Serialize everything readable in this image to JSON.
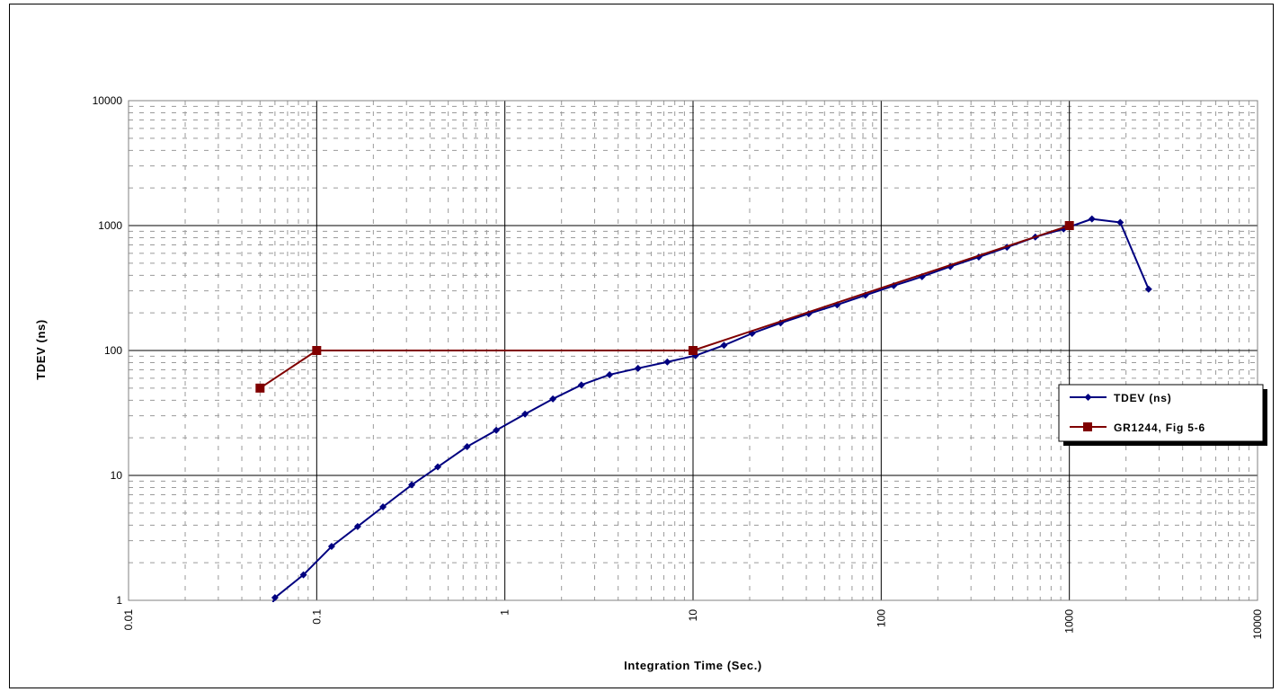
{
  "chart_data": {
    "type": "line",
    "title": "",
    "xlabel": "Integration Time (Sec.)",
    "ylabel": "TDEV (ns)",
    "xscale": "log",
    "yscale": "log",
    "xlim": [
      0.01,
      10000
    ],
    "ylim": [
      1,
      10000
    ],
    "x_ticks": [
      "0.01",
      "0.1",
      "1",
      "10",
      "100",
      "1000",
      "10000"
    ],
    "y_ticks": [
      "1",
      "10",
      "100",
      "1000",
      "10000"
    ],
    "grid": "major solid, minor dashed",
    "legend": {
      "placement": "right",
      "entries": [
        "TDEV (ns)",
        "GR1244, Fig 5-6"
      ]
    },
    "series": [
      {
        "name": "TDEV (ns)",
        "color": "#000080",
        "marker": "diamond",
        "x": [
          0.057,
          0.06,
          0.085,
          0.12,
          0.165,
          0.225,
          0.32,
          0.44,
          0.63,
          0.9,
          1.28,
          1.8,
          2.55,
          3.6,
          5.1,
          7.3,
          10.3,
          14.6,
          20.6,
          29.2,
          41.2,
          58.3,
          82.4,
          116.5,
          164.8,
          233,
          330,
          466,
          659,
          932,
          1318,
          1864,
          2636
        ],
        "y": [
          0.88,
          1.05,
          1.6,
          2.7,
          3.9,
          5.6,
          8.4,
          11.7,
          17,
          23,
          31,
          41,
          53,
          64,
          72,
          81,
          91,
          110,
          137,
          166,
          197,
          232,
          277,
          330,
          390,
          470,
          560,
          670,
          810,
          940,
          1130,
          1060,
          310
        ],
        "markers_from_index": 1
      },
      {
        "name": "GR1244, Fig 5-6",
        "color": "#800000",
        "marker": "square",
        "x": [
          0.05,
          0.1,
          10,
          1000
        ],
        "y": [
          50,
          100,
          100,
          1000
        ]
      }
    ]
  }
}
